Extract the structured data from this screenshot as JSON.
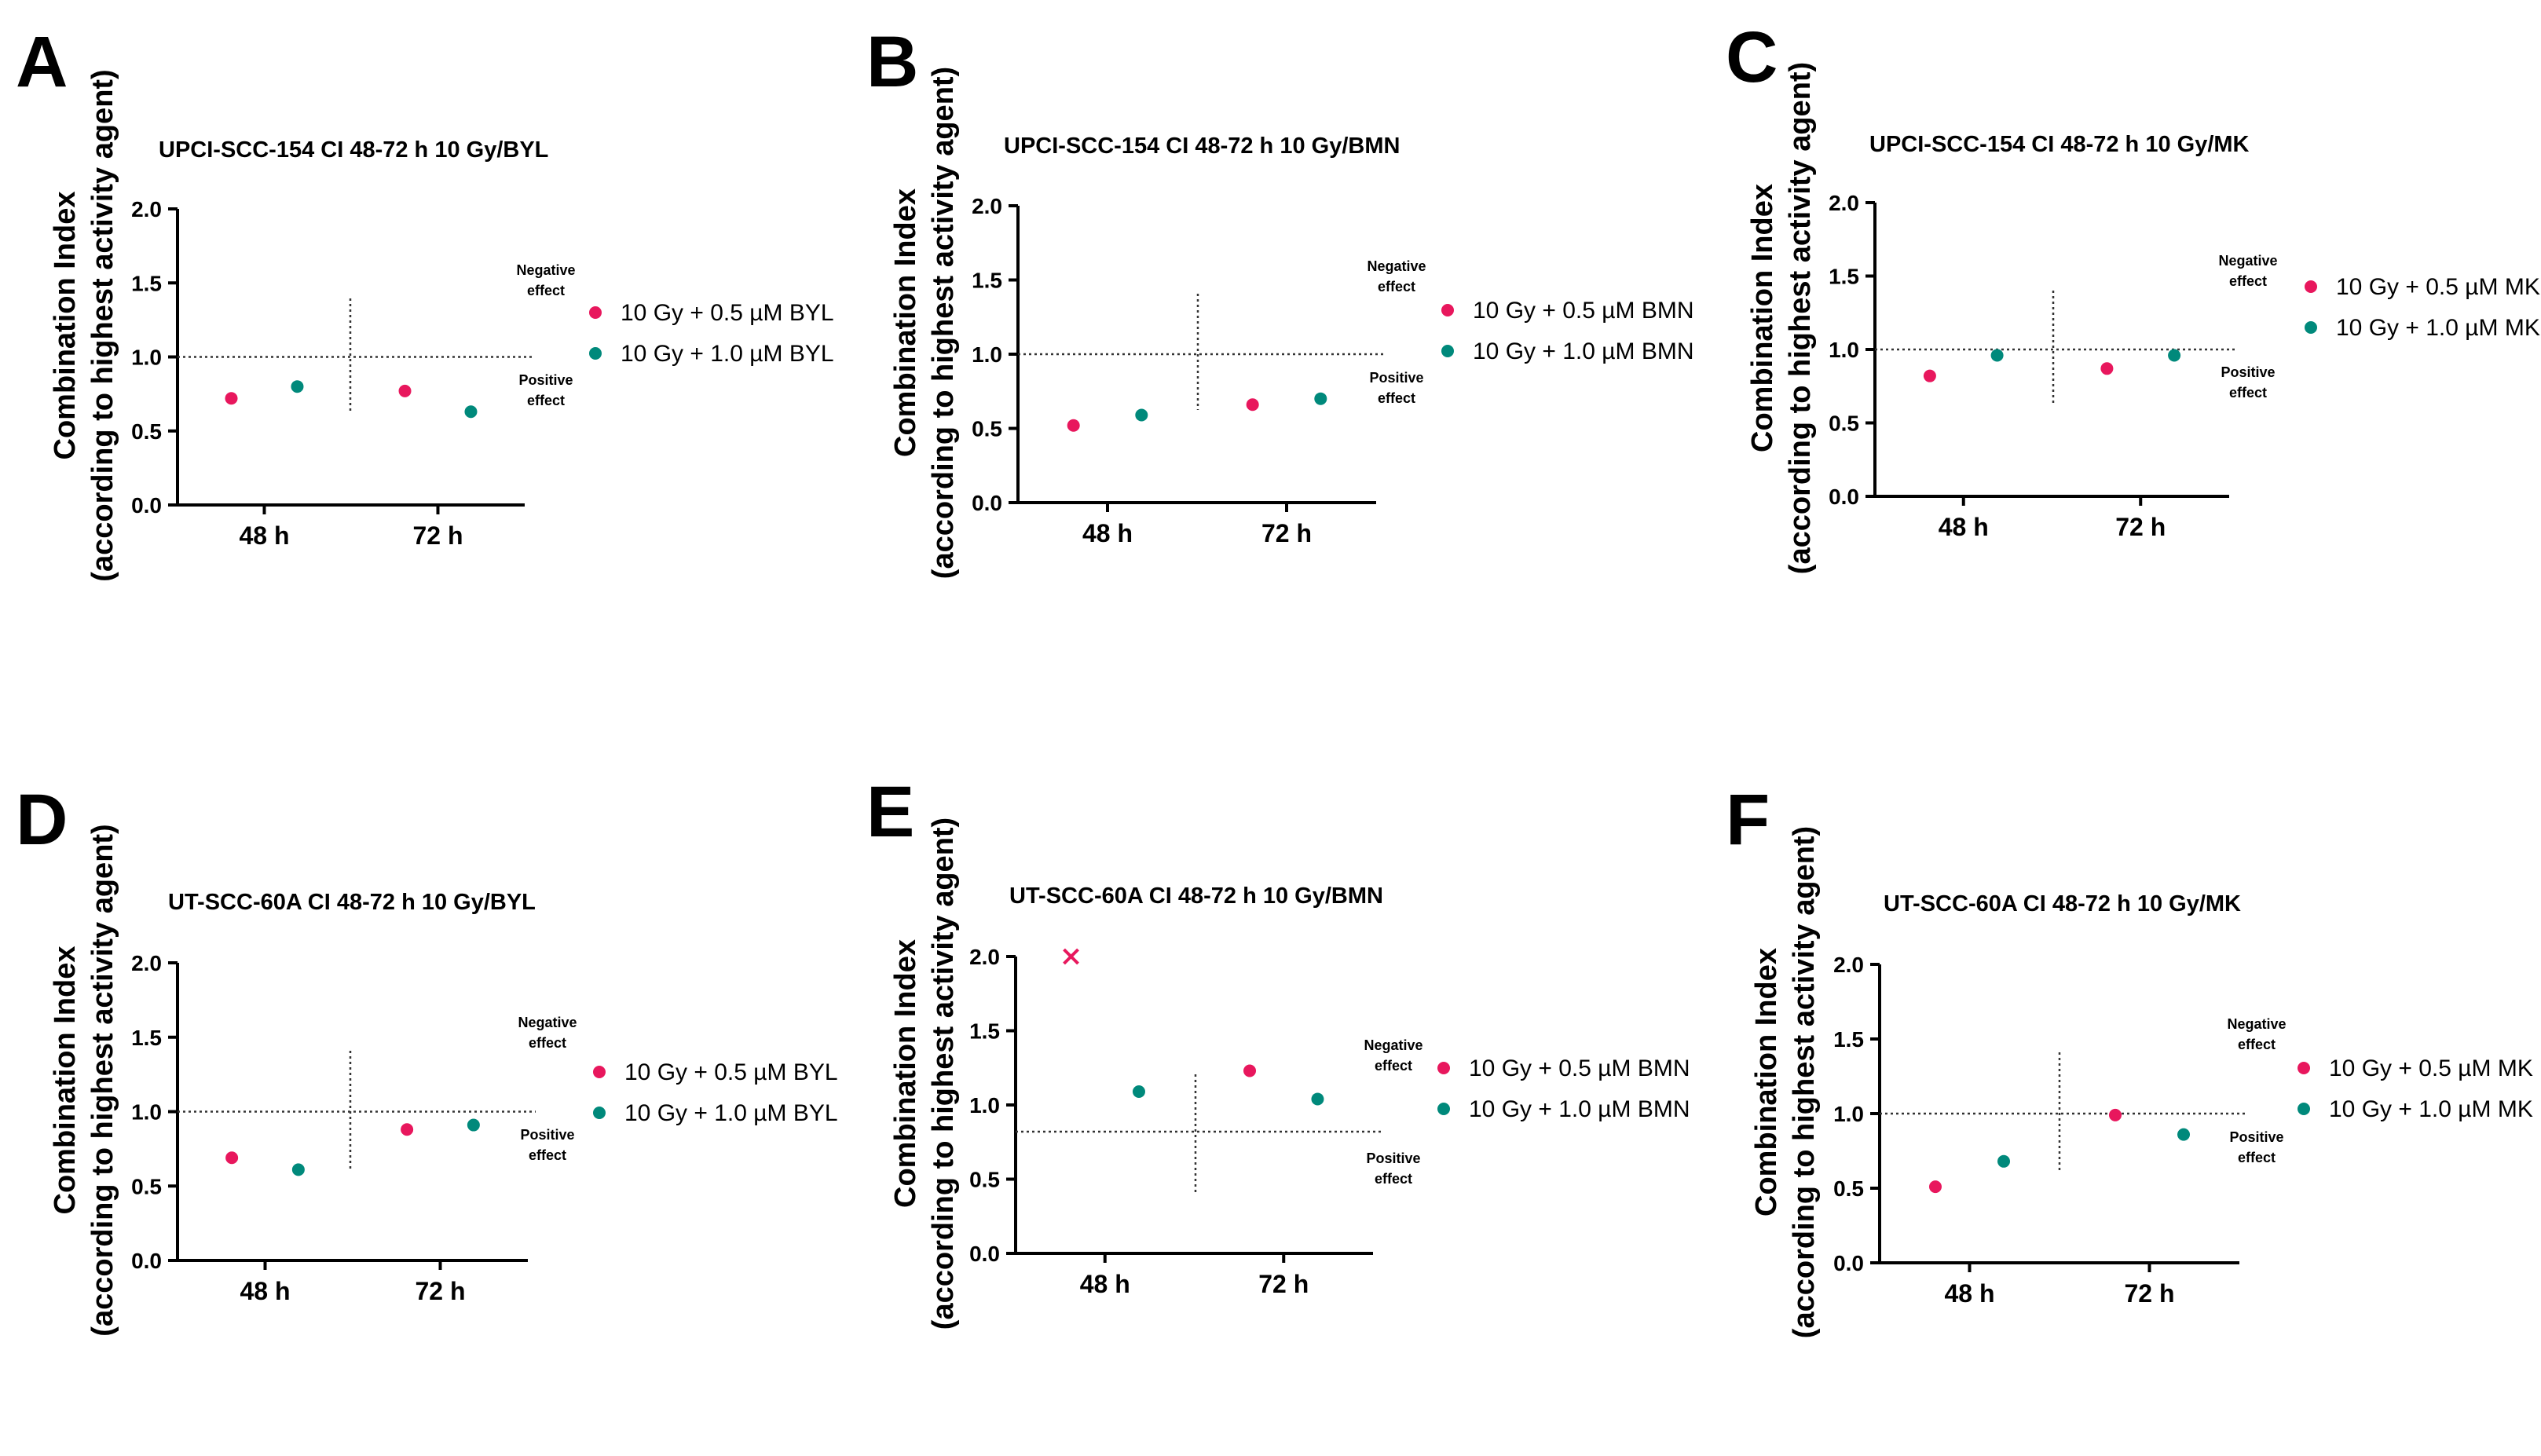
{
  "colors": {
    "series_a": "#e8175d",
    "series_b": "#00897b",
    "axis": "#000000",
    "guide": "#333333"
  },
  "common": {
    "y_axis_label_line1": "Combination Index",
    "y_axis_label_line2": "(according to highest activity agent)",
    "negative_label_line1": "Negative",
    "negative_label_line2": "effect",
    "positive_label_line1": "Positive",
    "positive_label_line2": "effect"
  },
  "chart_data": [
    {
      "panel": "A",
      "type": "scatter",
      "title": "UPCI-SCC-154 CI 48-72 h 10 Gy/BYL",
      "ylabel": "Combination Index (according to highest activity agent)",
      "categories": [
        "48 h",
        "72 h"
      ],
      "ylim": [
        0,
        2.0
      ],
      "yticks": [
        "0.0",
        "0.5",
        "1.0",
        "1.5",
        "2.0"
      ],
      "reference_line": 1.0,
      "series": [
        {
          "name": "10 Gy + 0.5 µM BYL",
          "marker": "circle",
          "values": [
            0.72,
            0.77
          ]
        },
        {
          "name": "10 Gy + 1.0 µM BYL",
          "marker": "circle",
          "values": [
            0.8,
            0.63
          ]
        }
      ]
    },
    {
      "panel": "B",
      "type": "scatter",
      "title": "UPCI-SCC-154 CI 48-72 h 10 Gy/BMN",
      "ylabel": "Combination Index (according to highest activity agent)",
      "categories": [
        "48 h",
        "72 h"
      ],
      "ylim": [
        0,
        2.0
      ],
      "yticks": [
        "0.0",
        "0.5",
        "1.0",
        "1.5",
        "2.0"
      ],
      "reference_line": 1.0,
      "series": [
        {
          "name": "10 Gy + 0.5 µM BMN",
          "marker": "circle",
          "values": [
            0.52,
            0.66
          ]
        },
        {
          "name": "10 Gy + 1.0 µM BMN",
          "marker": "circle",
          "values": [
            0.59,
            0.7
          ]
        }
      ]
    },
    {
      "panel": "C",
      "type": "scatter",
      "title": "UPCI-SCC-154 CI 48-72 h 10 Gy/MK",
      "ylabel": "Combination Index (according to highest activity agent)",
      "categories": [
        "48 h",
        "72 h"
      ],
      "ylim": [
        0,
        2.0
      ],
      "yticks": [
        "0.0",
        "0.5",
        "1.0",
        "1.5",
        "2.0"
      ],
      "reference_line": 1.0,
      "series": [
        {
          "name": "10 Gy + 0.5 µM MK",
          "marker": "circle",
          "values": [
            0.82,
            0.87
          ]
        },
        {
          "name": "10 Gy + 1.0 µM MK",
          "marker": "circle",
          "values": [
            0.96,
            0.96
          ]
        }
      ]
    },
    {
      "panel": "D",
      "type": "scatter",
      "title": "UT-SCC-60A CI 48-72 h 10 Gy/BYL",
      "ylabel": "Combination Index (according to highest activity agent)",
      "categories": [
        "48 h",
        "72 h"
      ],
      "ylim": [
        0,
        2.0
      ],
      "yticks": [
        "0.0",
        "0.5",
        "1.0",
        "1.5",
        "2.0"
      ],
      "reference_line": 1.0,
      "series": [
        {
          "name": "10 Gy + 0.5 µM BYL",
          "marker": "circle",
          "values": [
            0.69,
            0.88
          ]
        },
        {
          "name": "10 Gy + 1.0 µM BYL",
          "marker": "circle",
          "values": [
            0.61,
            0.91
          ]
        }
      ]
    },
    {
      "panel": "E",
      "type": "scatter",
      "title": "UT-SCC-60A CI 48-72 h 10 Gy/BMN",
      "ylabel": "Combination Index (according to highest activity agent)",
      "categories": [
        "48 h",
        "72 h"
      ],
      "ylim": [
        0,
        2.0
      ],
      "yticks": [
        "0.0",
        "0.5",
        "1.0",
        "1.5",
        "2.0"
      ],
      "reference_line": 0.82,
      "series": [
        {
          "name": "10 Gy + 0.5 µM BMN",
          "marker": "circle",
          "values": [
            2.0,
            1.23
          ],
          "markers": [
            "cross",
            "circle"
          ]
        },
        {
          "name": "10 Gy + 1.0 µM BMN",
          "marker": "circle",
          "values": [
            1.09,
            1.04
          ]
        }
      ]
    },
    {
      "panel": "F",
      "type": "scatter",
      "title": "UT-SCC-60A CI 48-72 h 10 Gy/MK",
      "ylabel": "Combination Index (according to highest activity agent)",
      "categories": [
        "48 h",
        "72 h"
      ],
      "ylim": [
        0,
        2.0
      ],
      "yticks": [
        "0.0",
        "0.5",
        "1.0",
        "1.5",
        "2.0"
      ],
      "reference_line": 1.0,
      "series": [
        {
          "name": "10 Gy + 0.5 µM MK",
          "marker": "circle",
          "values": [
            0.51,
            0.99
          ]
        },
        {
          "name": "10 Gy + 1.0 µM MK",
          "marker": "circle",
          "values": [
            0.68,
            0.86
          ]
        }
      ]
    }
  ]
}
